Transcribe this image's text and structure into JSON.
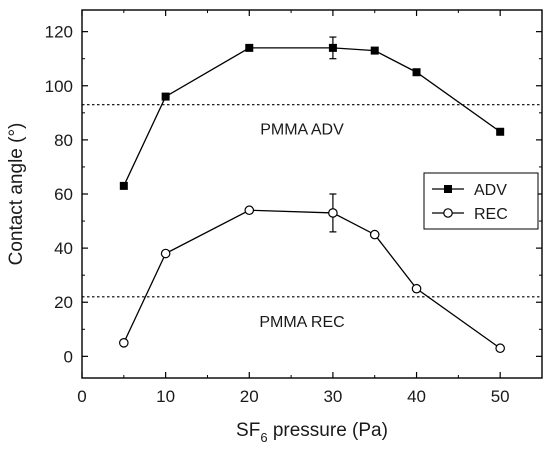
{
  "chart_data": {
    "type": "line",
    "xlabel": {
      "main": "SF",
      "sub": "6",
      "rest": " pressure (Pa)"
    },
    "ylabel": "Contact angle (°)",
    "xlim": [
      0,
      55
    ],
    "ylim": [
      -8,
      128
    ],
    "xticks": [
      0,
      10,
      20,
      30,
      40,
      50
    ],
    "yticks": [
      0,
      20,
      40,
      60,
      80,
      100,
      120
    ],
    "grid": false,
    "legend_position": "right-middle",
    "series": [
      {
        "name": "ADV",
        "marker": "filled-square",
        "color": "#000000",
        "x": [
          5,
          10,
          20,
          30,
          35,
          40,
          50
        ],
        "y": [
          63,
          96,
          114,
          114,
          113,
          105,
          83
        ],
        "error": [
          0,
          0,
          0,
          4,
          0,
          0,
          0
        ]
      },
      {
        "name": "REC",
        "marker": "open-circle",
        "color": "#000000",
        "x": [
          5,
          10,
          20,
          30,
          35,
          40,
          50
        ],
        "y": [
          5,
          38,
          54,
          53,
          45,
          25,
          3
        ],
        "error": [
          0,
          0,
          0,
          7,
          0,
          0,
          0
        ]
      }
    ],
    "reference_lines": [
      {
        "y": 93,
        "label": "PMMA ADV",
        "style": "dotted"
      },
      {
        "y": 22,
        "label": "PMMA REC",
        "style": "dotted"
      }
    ]
  }
}
